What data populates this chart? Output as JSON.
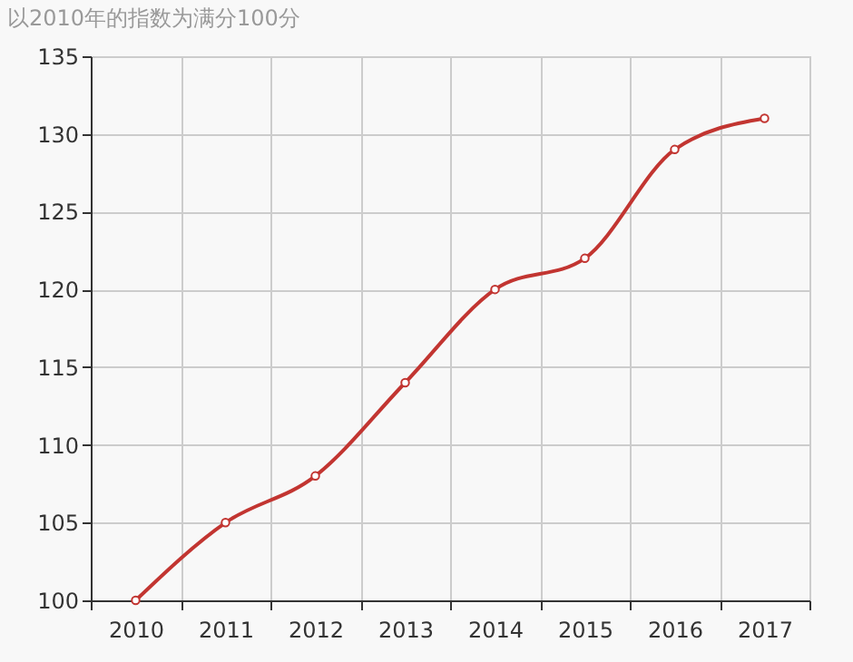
{
  "chart_data": {
    "type": "line",
    "title": "以2010年的指数为满分100分",
    "categories": [
      "2010",
      "2011",
      "2012",
      "2013",
      "2014",
      "2015",
      "2016",
      "2017"
    ],
    "series": [
      {
        "color": "#c23531",
        "values": [
          100,
          105,
          108,
          114,
          120,
          122,
          129,
          131
        ]
      }
    ],
    "ylim": [
      100,
      135
    ],
    "yticks": [
      100,
      105,
      110,
      115,
      120,
      125,
      130,
      135
    ],
    "grid": true,
    "marker": "circle",
    "line_style": "solid"
  }
}
